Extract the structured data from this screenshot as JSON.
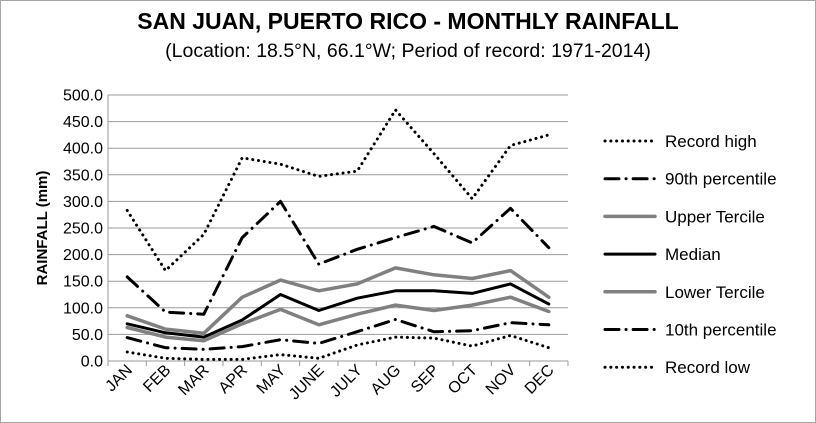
{
  "chart_data": {
    "type": "line",
    "title": "SAN JUAN, PUERTO RICO - MONTHLY RAINFALL",
    "subtitle": "(Location: 18.5°N, 66.1°W; Period of record: 1971-2014)",
    "xlabel": "",
    "ylabel": "RAINFALL (mm)",
    "ylim": [
      0,
      500
    ],
    "ytick_step": 50,
    "ytick_labels": [
      "0.0",
      "50.0",
      "100.0",
      "150.0",
      "200.0",
      "250.0",
      "300.0",
      "350.0",
      "400.0",
      "450.0",
      "500.0"
    ],
    "categories": [
      "JAN",
      "FEB",
      "MAR",
      "APR",
      "MAY",
      "JUNE",
      "JULY",
      "AUG",
      "SEP",
      "OCT",
      "NOV",
      "DEC"
    ],
    "grid": true,
    "legend_position": "right",
    "series": [
      {
        "name": "Record high",
        "color": "#000000",
        "dash": "dotted",
        "width": 3,
        "values": [
          283,
          170,
          238,
          382,
          370,
          347,
          357,
          472,
          390,
          305,
          405,
          425
        ]
      },
      {
        "name": "90th percentile",
        "color": "#000000",
        "dash": "dashdot",
        "width": 3,
        "values": [
          158,
          92,
          88,
          232,
          300,
          182,
          210,
          232,
          253,
          222,
          287,
          213
        ]
      },
      {
        "name": "Upper Tercile",
        "color": "#808080",
        "dash": "solid",
        "width": 3.5,
        "values": [
          85,
          60,
          52,
          120,
          152,
          132,
          145,
          175,
          162,
          155,
          170,
          120
        ]
      },
      {
        "name": "Median",
        "color": "#000000",
        "dash": "solid",
        "width": 3,
        "values": [
          70,
          53,
          45,
          77,
          125,
          95,
          118,
          132,
          132,
          127,
          145,
          107
        ]
      },
      {
        "name": "Lower Tercile",
        "color": "#808080",
        "dash": "solid",
        "width": 3.5,
        "values": [
          63,
          45,
          38,
          70,
          97,
          68,
          88,
          105,
          95,
          105,
          120,
          93
        ]
      },
      {
        "name": "10th percentile",
        "color": "#000000",
        "dash": "dashdot",
        "width": 3,
        "values": [
          44,
          25,
          22,
          27,
          40,
          33,
          55,
          78,
          55,
          57,
          72,
          68
        ]
      },
      {
        "name": "Record low",
        "color": "#000000",
        "dash": "dotted",
        "width": 3,
        "values": [
          17,
          5,
          3,
          3,
          12,
          5,
          30,
          45,
          43,
          28,
          48,
          25
        ]
      }
    ]
  }
}
